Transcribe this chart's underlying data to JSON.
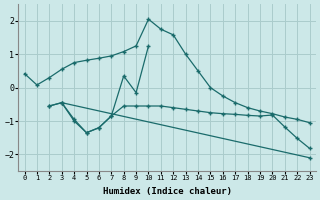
{
  "xlabel": "Humidex (Indice chaleur)",
  "bg_color": "#cce8e8",
  "grid_color": "#aacccc",
  "line_color": "#1a6b6b",
  "xlim": [
    -0.5,
    23.5
  ],
  "ylim": [
    -2.5,
    2.5
  ],
  "yticks": [
    -2,
    -1,
    0,
    1,
    2
  ],
  "xticks": [
    0,
    1,
    2,
    3,
    4,
    5,
    6,
    7,
    8,
    9,
    10,
    11,
    12,
    13,
    14,
    15,
    16,
    17,
    18,
    19,
    20,
    21,
    22,
    23
  ],
  "curve1_x": [
    0,
    1,
    2,
    3,
    4,
    5,
    6,
    7,
    8,
    9,
    10,
    11,
    12,
    13,
    14,
    15,
    16,
    17,
    18,
    19,
    20,
    21,
    22,
    23
  ],
  "curve1_y": [
    0.42,
    0.08,
    0.3,
    0.55,
    0.75,
    0.82,
    0.88,
    0.95,
    1.08,
    1.25,
    2.05,
    1.75,
    1.58,
    1.0,
    0.5,
    0.0,
    -0.25,
    -0.45,
    -0.6,
    -0.7,
    -0.78,
    -0.88,
    -0.95,
    -1.05
  ],
  "curve2_x": [
    3,
    4,
    5,
    6,
    7,
    8,
    9,
    10
  ],
  "curve2_y": [
    -0.45,
    -1.0,
    -1.35,
    -1.2,
    -0.85,
    0.35,
    -0.15,
    1.25
  ],
  "curve3_x": [
    2,
    3,
    4,
    5,
    6,
    7,
    8,
    9,
    10,
    11,
    12,
    13,
    14,
    15,
    16,
    17,
    18,
    19,
    20,
    21,
    22,
    23
  ],
  "curve3_y": [
    -0.55,
    -0.45,
    -0.95,
    -1.35,
    -1.2,
    -0.85,
    -0.55,
    -0.55,
    -0.55,
    -0.55,
    -0.6,
    -0.65,
    -0.7,
    -0.75,
    -0.78,
    -0.8,
    -0.83,
    -0.85,
    -0.82,
    -1.18,
    -1.52,
    -1.82
  ],
  "curve4_x": [
    2,
    3,
    23
  ],
  "curve4_y": [
    -0.55,
    -0.45,
    -2.1
  ]
}
